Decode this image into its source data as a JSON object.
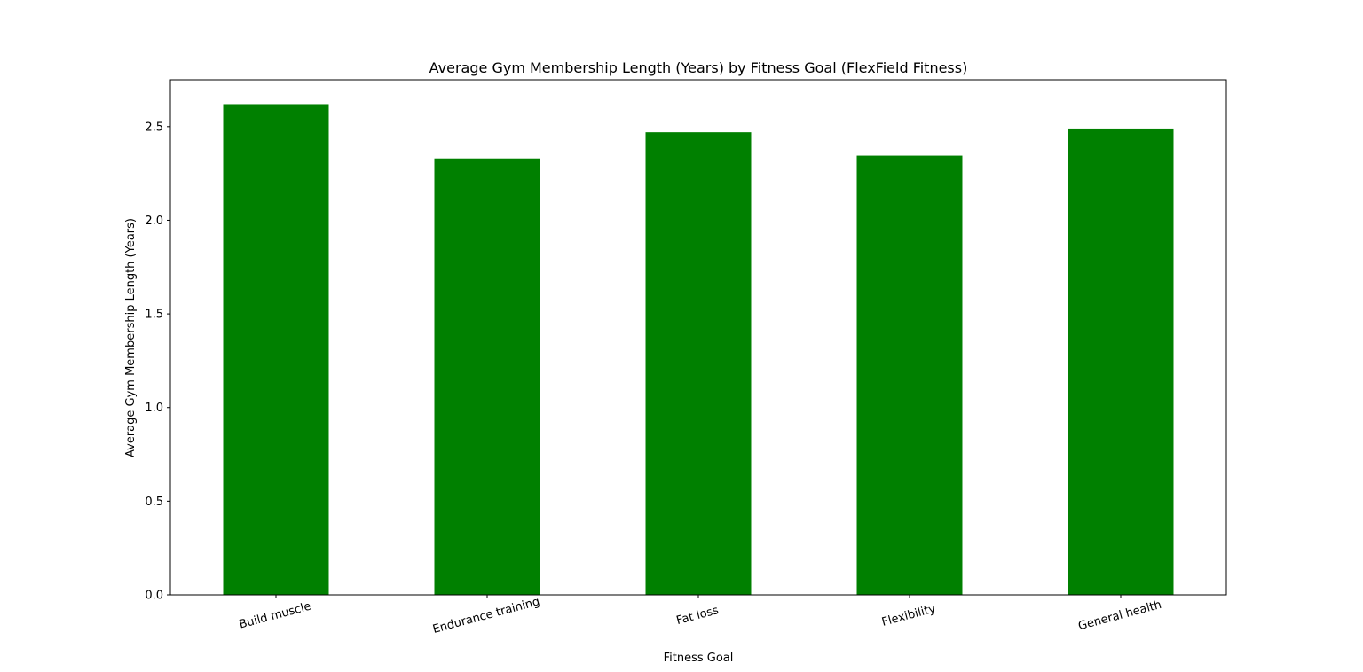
{
  "chart_data": {
    "type": "bar",
    "title": "Average Gym Membership Length (Years) by Fitness Goal (FlexField Fitness)",
    "xlabel": "Fitness Goal",
    "ylabel": "Average Gym Membership Length (Years)",
    "categories": [
      "Build muscle",
      "Endurance training",
      "Fat loss",
      "Flexibility",
      "General health"
    ],
    "values": [
      2.62,
      2.33,
      2.47,
      2.345,
      2.49
    ],
    "ylim": [
      0,
      2.75
    ],
    "yticks": [
      0.0,
      0.5,
      1.0,
      1.5,
      2.0,
      2.5
    ],
    "ytick_labels": [
      "0.0",
      "0.5",
      "1.0",
      "1.5",
      "2.0",
      "2.5"
    ],
    "bar_color": "#008000",
    "grid": false,
    "legend": "none"
  }
}
